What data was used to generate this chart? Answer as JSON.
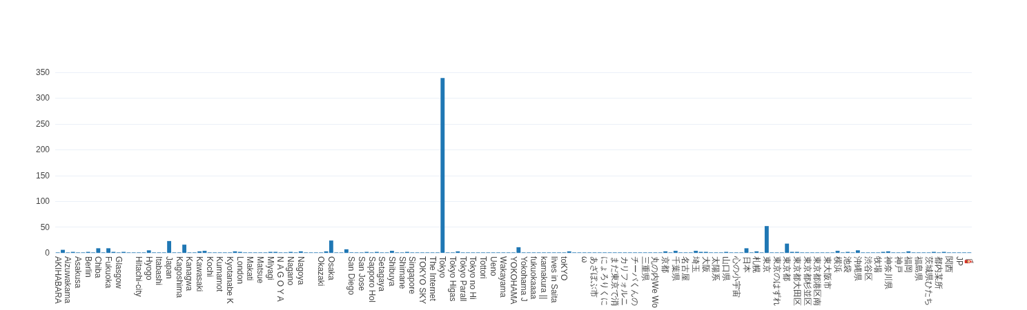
{
  "chart_data": {
    "type": "bar",
    "categories": [
      "AKIHABARA",
      null,
      "Aizuwakama",
      null,
      "Asakusa",
      null,
      "Berlin",
      null,
      "Chiba",
      null,
      "Fukuoka",
      null,
      "Glasgow",
      null,
      null,
      null,
      "Hitachi-city",
      null,
      "Hyogo",
      null,
      "Itabashi",
      null,
      "Japan",
      null,
      "Kagoshima",
      null,
      "Kanagwa",
      null,
      "Kawasaki",
      null,
      "Kochi",
      null,
      "Kumamot",
      null,
      "Kyotanabe K",
      null,
      "London",
      null,
      "Makati",
      null,
      "Matsue",
      null,
      "Miyagi",
      null,
      "N A G O Y A",
      null,
      "Nagano",
      null,
      "Nagoya",
      null,
      null,
      null,
      "Okazaki",
      null,
      "Osaka",
      null,
      null,
      null,
      "San Diego",
      null,
      "San Jose",
      null,
      "Sapporo Hol",
      null,
      "Setagaya",
      null,
      "Shibuya",
      null,
      "Shimane",
      null,
      "Singapore",
      null,
      "TOKYO SKY",
      null,
      "The Internet",
      null,
      "Tokyo",
      null,
      "Tokyo Higas",
      null,
      "Tokyo Parall",
      null,
      "Tokyo no Hi",
      null,
      "Tottori",
      null,
      "Ueno",
      null,
      "Wakayama",
      null,
      "YOKOHAMA",
      null,
      "Yokohama J",
      null,
      "fukuokaaaa",
      null,
      "kamakura ||",
      null,
      "lives in Saita",
      null,
      "toKYO",
      null,
      null,
      null,
      "ω",
      null,
      "あざぼぶ市",
      null,
      "にょろりくに",
      null,
      "まだ東京で消",
      null,
      "カリフォルニ",
      null,
      "チーバくんの",
      null,
      "三重県",
      null,
      "丸の内We Wo",
      null,
      "京都",
      null,
      "千葉県",
      null,
      "名古屋",
      null,
      "埼玉",
      null,
      "大阪",
      null,
      "太陽系",
      null,
      "山口県",
      null,
      "心の小宇宙",
      null,
      "日本",
      null,
      "札幌",
      null,
      "東京",
      null,
      "東京のはずれ",
      null,
      "東京都",
      null,
      "東京都大田区",
      null,
      "東京都杉並区",
      null,
      "東京都港区南",
      null,
      "東大阪市",
      null,
      "横浜",
      null,
      "池袋",
      null,
      "沖縄県",
      null,
      "渋谷区",
      null,
      "牧場",
      null,
      "神奈川県",
      null,
      "神戸",
      null,
      "福岡",
      null,
      "福島県",
      null,
      "茨城県ひたち",
      null,
      "都内某所",
      null,
      "関西",
      null,
      "JP",
      null,
      "🧯"
    ],
    "values": [
      1,
      6,
      1,
      2,
      1,
      1,
      2,
      1,
      9,
      1,
      9,
      2,
      1,
      2,
      1,
      1,
      1,
      1,
      5,
      1,
      1,
      1,
      23,
      1,
      1,
      16,
      1,
      1,
      3,
      4,
      1,
      1,
      1,
      1,
      1,
      3,
      2,
      1,
      1,
      1,
      1,
      1,
      2,
      2,
      1,
      1,
      2,
      1,
      3,
      1,
      1,
      1,
      1,
      3,
      24,
      1,
      1,
      7,
      1,
      1,
      1,
      2,
      1,
      2,
      1,
      1,
      4,
      1,
      1,
      2,
      1,
      1,
      1,
      1,
      1,
      1,
      339,
      1,
      1,
      3,
      1,
      1,
      1,
      1,
      1,
      1,
      1,
      1,
      1,
      1,
      1,
      11,
      1,
      1,
      1,
      1,
      1,
      1,
      1,
      1,
      1,
      3,
      1,
      1,
      1,
      1,
      1,
      1,
      1,
      1,
      1,
      1,
      1,
      1,
      1,
      1,
      1,
      1,
      1,
      1,
      3,
      1,
      4,
      1,
      1,
      1,
      4,
      2,
      2,
      1,
      1,
      1,
      2,
      1,
      1,
      1,
      9,
      1,
      3,
      1,
      52,
      1,
      1,
      1,
      18,
      2,
      2,
      1,
      1,
      1,
      1,
      1,
      1,
      1,
      4,
      1,
      2,
      1,
      5,
      1,
      1,
      1,
      1,
      2,
      3,
      1,
      1,
      1,
      3,
      1,
      1,
      1,
      1,
      2,
      1,
      2,
      1,
      1,
      1,
      1,
      1
    ],
    "color": "#1f77b4",
    "ylim": [
      0,
      350
    ],
    "yticks": [
      0,
      50,
      100,
      150,
      200,
      250,
      300,
      350
    ],
    "grid": "y"
  }
}
